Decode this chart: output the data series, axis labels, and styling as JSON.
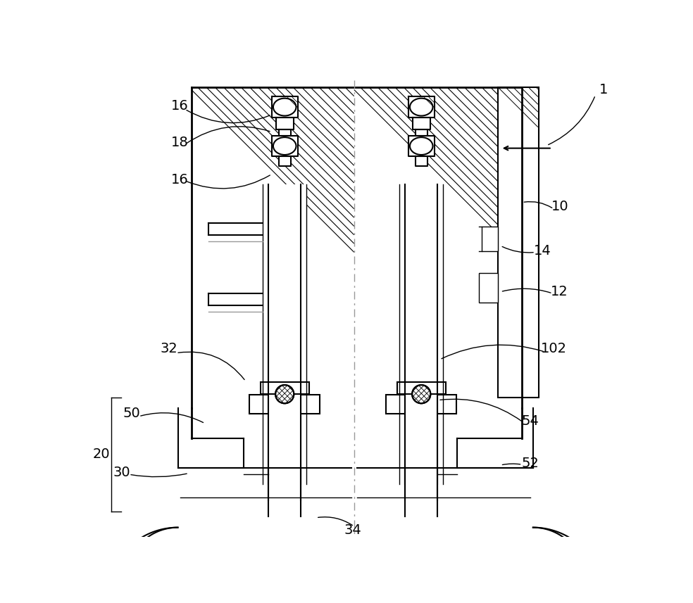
{
  "bg_color": "#ffffff",
  "line_color": "#000000",
  "centerline_color": "#aaaaaa",
  "fig_width": 9.84,
  "fig_height": 8.57,
  "dpi": 100
}
